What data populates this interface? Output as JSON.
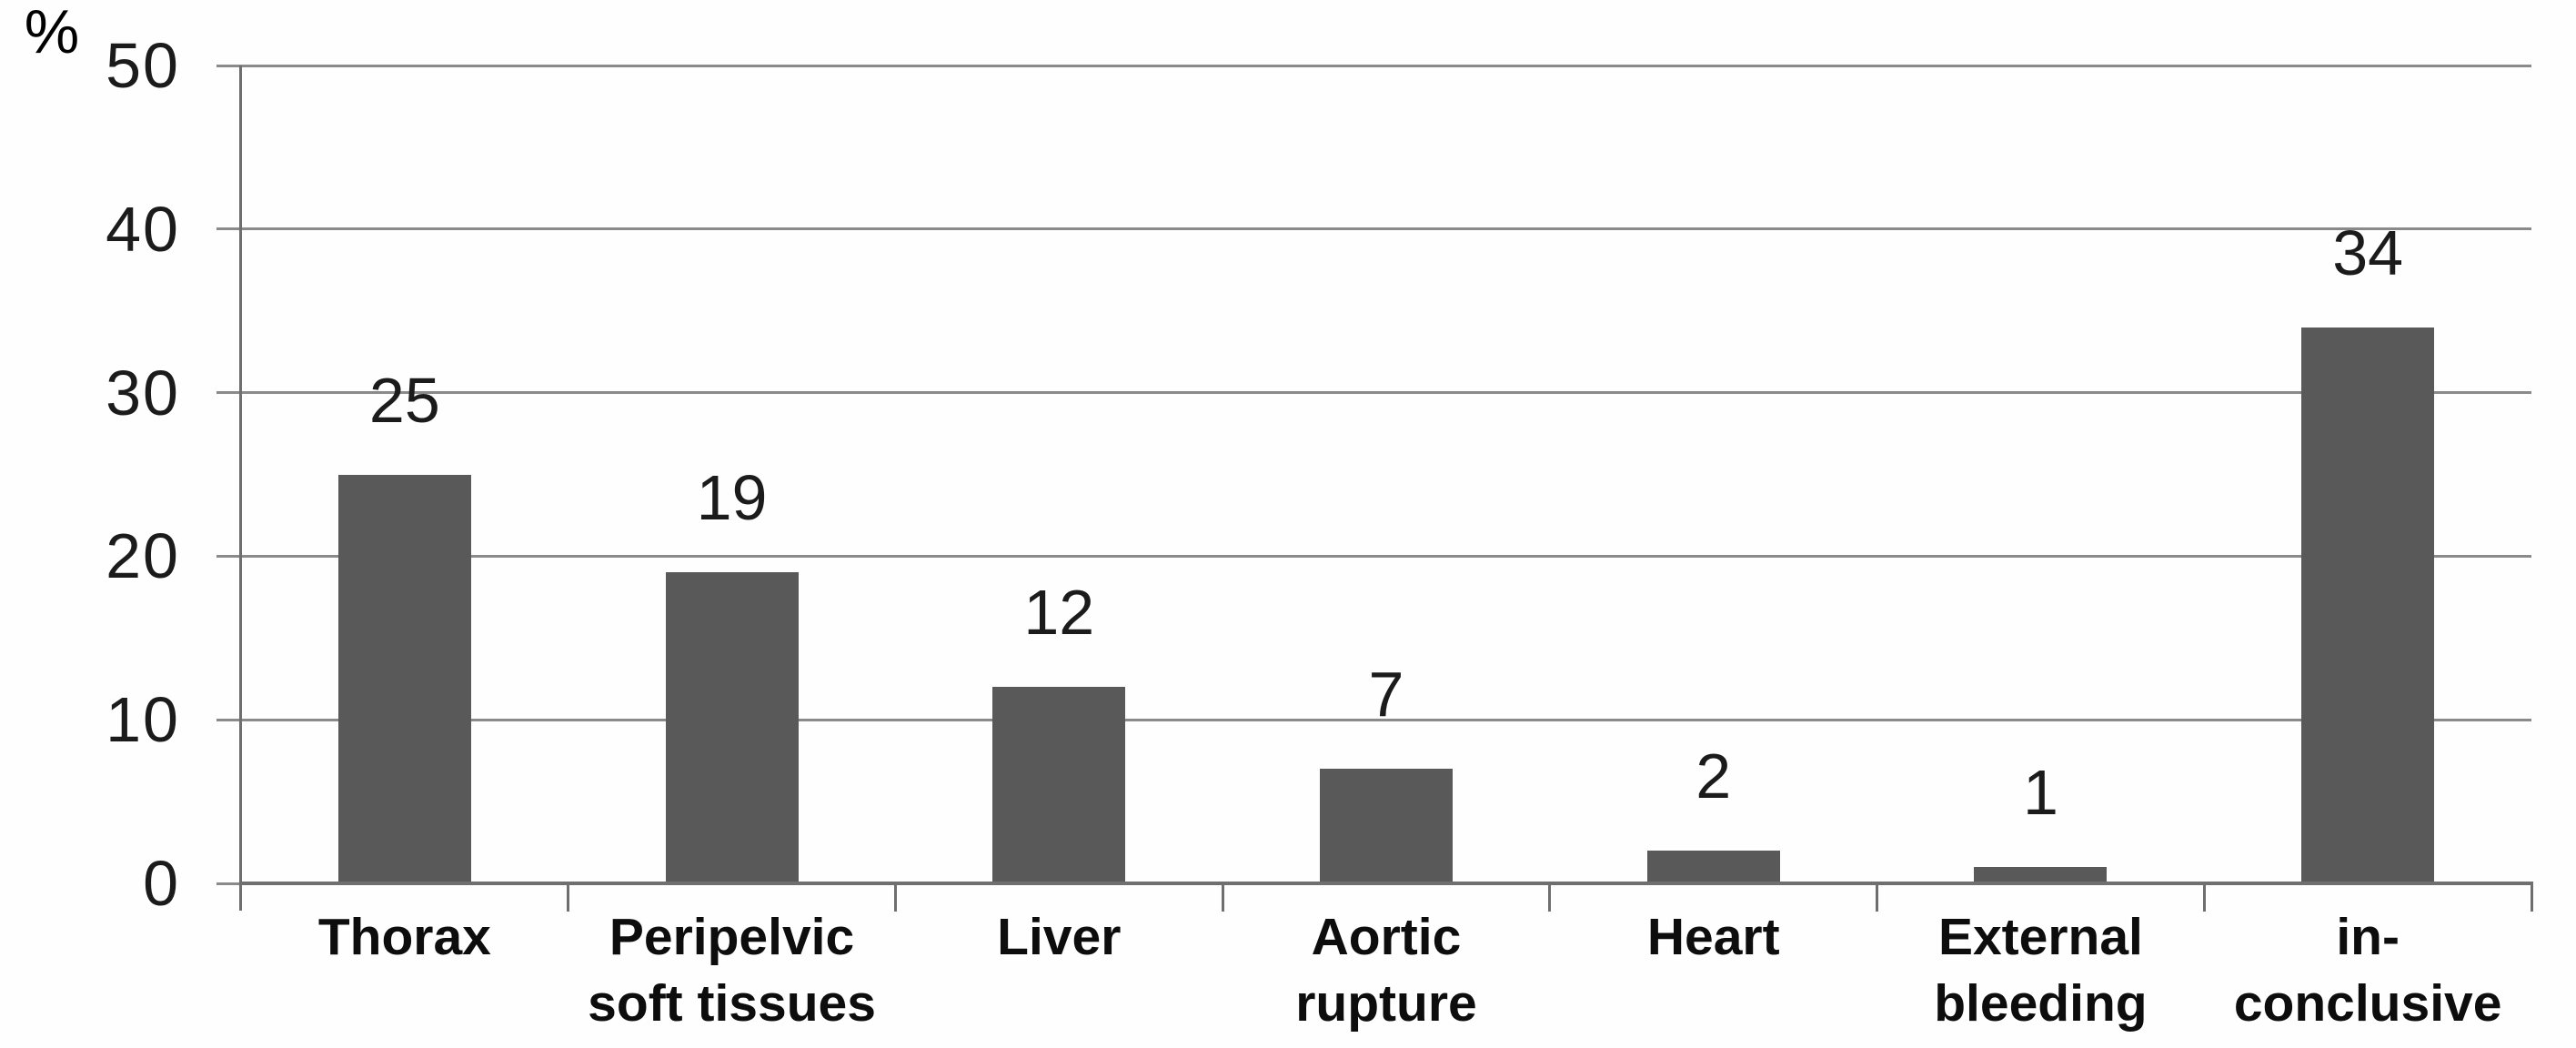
{
  "chart_data": {
    "type": "bar",
    "title": "",
    "xlabel": "",
    "ylabel": "%",
    "categories": [
      "Thorax",
      "Peripelvic soft tissues",
      "Liver",
      "Aortic rupture",
      "Heart",
      "External bleeding",
      "in-conclusive"
    ],
    "category_lines": [
      [
        "Thorax"
      ],
      [
        "Peripelvic",
        "soft tissues"
      ],
      [
        "Liver"
      ],
      [
        "Aortic",
        "rupture"
      ],
      [
        "Heart"
      ],
      [
        "External",
        "bleeding"
      ],
      [
        "in-",
        "conclusive"
      ]
    ],
    "values": [
      25,
      19,
      12,
      7,
      2,
      1,
      34
    ],
    "value_labels": [
      "25",
      "19",
      "12",
      "7",
      "2",
      "1",
      "34"
    ],
    "yticks": [
      0,
      10,
      20,
      30,
      40,
      50
    ],
    "ytick_labels": [
      "0",
      "10",
      "20",
      "30",
      "40",
      "50"
    ],
    "ylim": [
      0,
      50
    ],
    "grid": true,
    "legend": null
  },
  "colors": {
    "bar": "#595959",
    "gridline": "#8a8a8a",
    "axis": "#6f6f6f",
    "value_text": "#1b1b1b",
    "tick_text": "#1b1b1b",
    "category_text": "#0d0d0d",
    "background": "#fefefe"
  }
}
